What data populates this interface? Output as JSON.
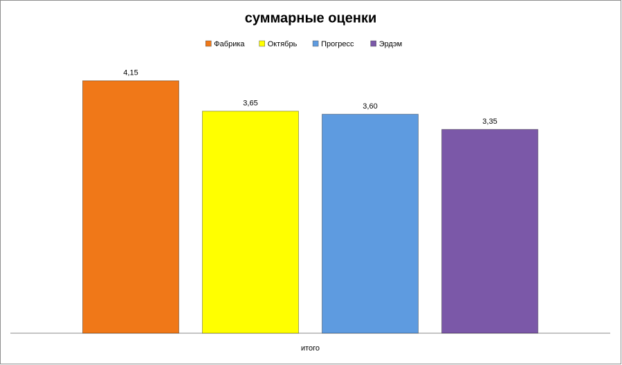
{
  "chart_data": {
    "type": "bar",
    "title": "суммарные оценки",
    "categories": [
      "итого"
    ],
    "series": [
      {
        "name": "Фабрика",
        "color": "#f07818",
        "values": [
          4.15
        ],
        "value_labels": [
          "4,15"
        ]
      },
      {
        "name": "Октябрь",
        "color": "#ffff00",
        "values": [
          3.65
        ],
        "value_labels": [
          "3,65"
        ]
      },
      {
        "name": "Прогресс",
        "color": "#5e9be0",
        "values": [
          3.6
        ],
        "value_labels": [
          "3,60"
        ]
      },
      {
        "name": "Эрдэм",
        "color": "#7b58a8",
        "values": [
          3.35
        ],
        "value_labels": [
          "3,35"
        ]
      }
    ],
    "ylim": [
      0,
      4.5
    ],
    "legend": "top"
  }
}
